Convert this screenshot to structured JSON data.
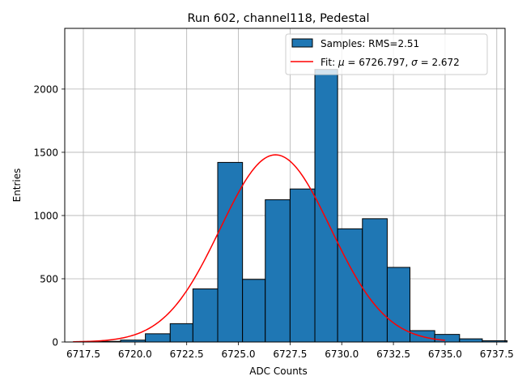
{
  "chart_data": {
    "type": "bar",
    "title": "Run 602, channel118, Pedestal",
    "xlabel": "ADC Counts",
    "ylabel": "Entries",
    "xlim": [
      6716.6,
      6737.9
    ],
    "ylim": [
      0,
      2480
    ],
    "grid": true,
    "legend_position": "top-right",
    "x_ticks": [
      6717.5,
      6720.0,
      6722.5,
      6725.0,
      6727.5,
      6730.0,
      6732.5,
      6735.0,
      6737.5
    ],
    "x_tick_labels": [
      "6717.5",
      "6720.0",
      "6722.5",
      "6725.0",
      "6727.5",
      "6730.0",
      "6732.5",
      "6735.0",
      "6737.5"
    ],
    "y_ticks": [
      0,
      500,
      1000,
      1500,
      2000
    ],
    "y_tick_labels": [
      "0",
      "500",
      "1000",
      "1500",
      "2000"
    ],
    "histogram": {
      "name": "Samples: RMS=2.51",
      "color": "#1f77b4",
      "edge_color": "#000000",
      "bin_edges": [
        6717.0,
        6718.2,
        6719.3,
        6720.5,
        6721.7,
        6722.8,
        6724.0,
        6725.2,
        6726.3,
        6727.5,
        6728.7,
        6729.8,
        6731.0,
        6732.2,
        6733.3,
        6734.5,
        6735.7,
        6736.8,
        6738.0
      ],
      "counts": [
        0,
        5,
        15,
        65,
        145,
        420,
        1420,
        495,
        1125,
        1210,
        2155,
        895,
        975,
        590,
        90,
        60,
        25,
        10
      ]
    },
    "fit": {
      "name": "Fit: μ = 6726.797, σ = 2.672",
      "legend_prefix": "Fit: ",
      "legend_mu": "μ",
      "legend_mu_value": " = 6726.797, ",
      "legend_sigma": "σ",
      "legend_sigma_value": " = 2.672",
      "color": "#ff0000",
      "mu": 6726.797,
      "sigma": 2.672,
      "peak": 1480,
      "x_range": [
        6717.0,
        6735.0
      ]
    }
  }
}
